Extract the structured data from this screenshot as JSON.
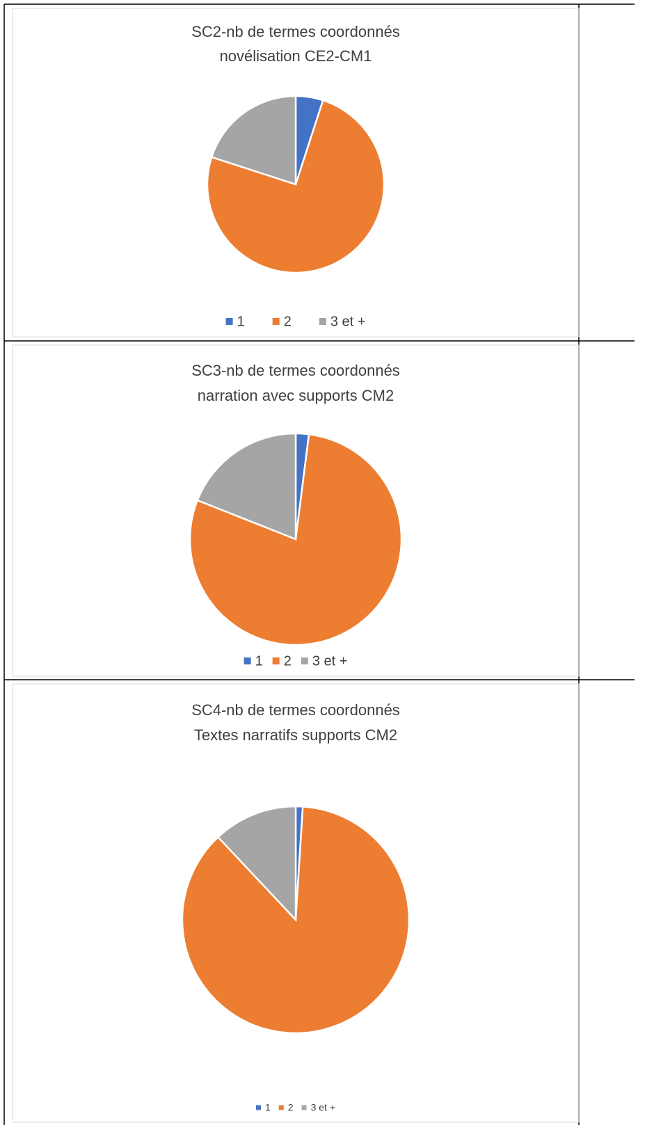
{
  "chart_data": [
    {
      "type": "pie",
      "title": "SC2-nb de termes coordonnés",
      "subtitle": "novélisation CE2-CM1",
      "categories": [
        "1",
        "2",
        "3 et +"
      ],
      "values": [
        5,
        75,
        20
      ],
      "colors": [
        "#4472c4",
        "#ed7d31",
        "#a5a5a5"
      ],
      "legend": "bottom"
    },
    {
      "type": "pie",
      "title": "SC3-nb de termes coordonnés",
      "subtitle": "narration avec supports CM2",
      "categories": [
        "1",
        "2",
        "3 et +"
      ],
      "values": [
        2,
        79,
        19
      ],
      "colors": [
        "#4472c4",
        "#ed7d31",
        "#a5a5a5"
      ],
      "legend": "bottom"
    },
    {
      "type": "pie",
      "title": "SC4-nb de termes coordonnés",
      "subtitle": "Textes narratifs supports CM2",
      "categories": [
        "1",
        "2",
        "3 et +"
      ],
      "values": [
        1,
        87,
        12
      ],
      "colors": [
        "#4472c4",
        "#ed7d31",
        "#a5a5a5"
      ],
      "legend": "bottom"
    }
  ]
}
